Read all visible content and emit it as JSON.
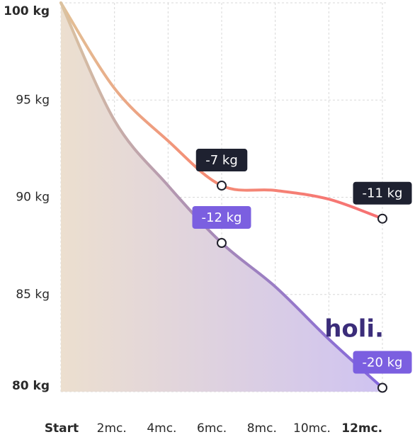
{
  "chart_data": {
    "type": "line",
    "categories": [
      "Start",
      "2mc.",
      "4mc.",
      "6mc.",
      "8mc.",
      "10mc.",
      "12mc."
    ],
    "series": [
      {
        "color": "#f77a74",
        "values": [
          100,
          95.6,
          92.9,
          90.6,
          90.35,
          89.9,
          88.9
        ]
      },
      {
        "color": "#8b6fd8",
        "values": [
          100,
          93.95,
          90.6,
          87.65,
          85.4,
          82.7,
          80.2
        ]
      }
    ],
    "annotations": [
      "-7 kg",
      "-11 kg",
      "-12 kg",
      "-20 kg"
    ],
    "brand": "holi.",
    "ylim": [
      80,
      100
    ],
    "yticks": [
      {
        "value": 80,
        "label": "80 kg"
      },
      {
        "value": 85,
        "label": "85 kg"
      },
      {
        "value": 90,
        "label": "90 kg"
      },
      {
        "value": 95,
        "label": "95 kg"
      },
      {
        "value": 100,
        "label": "100 kg"
      }
    ],
    "grid": true
  }
}
